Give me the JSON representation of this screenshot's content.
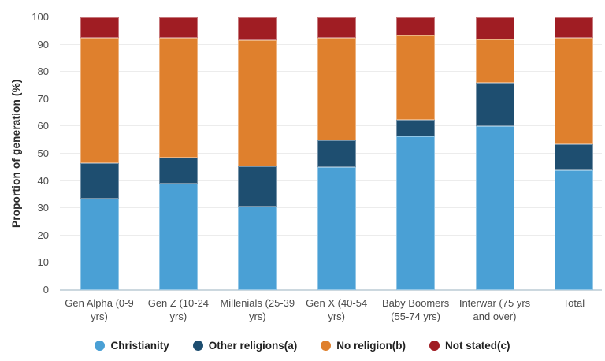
{
  "chart_data": {
    "type": "bar",
    "stacked": true,
    "title": "",
    "xlabel": "",
    "ylabel": "Proportion of generation (%)",
    "ylim": [
      0,
      100
    ],
    "yticks": [
      0,
      10,
      20,
      30,
      40,
      50,
      60,
      70,
      80,
      90,
      100
    ],
    "grid": true,
    "legend_position": "bottom",
    "categories": [
      "Gen Alpha (0-9 yrs)",
      "Gen Z (10-24 yrs)",
      "Millenials (25-39 yrs)",
      "Gen X (40-54 yrs)",
      "Baby Boomers (55-74 yrs)",
      "Interwar (75 yrs and over)",
      "Total"
    ],
    "series": [
      {
        "name": "Christianity",
        "color": "#4aa0d5",
        "values": [
          33.5,
          39.0,
          30.5,
          45.0,
          56.5,
          60.0,
          44.0
        ]
      },
      {
        "name": "Other religions(a)",
        "color": "#1e4e70",
        "values": [
          13.0,
          9.5,
          15.0,
          10.0,
          6.0,
          16.0,
          9.5
        ]
      },
      {
        "name": "No religion(b)",
        "color": "#df802d",
        "values": [
          46.0,
          44.0,
          46.0,
          37.5,
          31.0,
          16.0,
          39.0
        ]
      },
      {
        "name": "Not stated(c)",
        "color": "#a01d23",
        "values": [
          7.5,
          7.5,
          8.5,
          7.5,
          6.5,
          8.0,
          7.5
        ]
      }
    ]
  }
}
